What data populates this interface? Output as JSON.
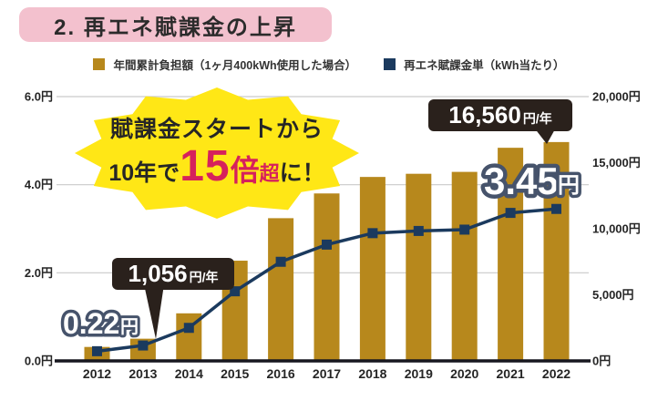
{
  "title": "2. 再エネ賦課金の上昇",
  "legend": [
    {
      "label": "年間累計負担額（1ヶ月400kWh使用した場合）",
      "color": "#B7881C"
    },
    {
      "label": "再エネ賦課金単（kWh当たり）",
      "color": "#1B3A5E"
    }
  ],
  "annotations": {
    "burst_line1": "賦課金スタートから",
    "burst_pre": "10年で",
    "burst_big": "15",
    "burst_bai": "倍",
    "burst_cho": "超",
    "burst_post": "に！",
    "callout_2013_value": "1,056",
    "callout_2013_unit": "円/年",
    "callout_2022_value": "16,560",
    "callout_2022_unit": "円/年",
    "label_2012_value": "0.22",
    "label_2012_unit": "円",
    "label_2022_value": "3.45",
    "label_2022_unit": "円"
  },
  "chart_data": {
    "type": "bar",
    "title": "再エネ賦課金の上昇",
    "categories": [
      2012,
      2013,
      2014,
      2015,
      2016,
      2017,
      2018,
      2019,
      2020,
      2021,
      2022
    ],
    "series": [
      {
        "name": "年間累計負担額（1ヶ月400kWh使用した場合）",
        "type": "bar",
        "axis": "right",
        "unit": "円/年",
        "values": [
          1056,
          1680,
          3600,
          7584,
          10800,
          12672,
          13920,
          14160,
          14304,
          16128,
          16560
        ]
      },
      {
        "name": "再エネ賦課金単（kWh当たり）",
        "type": "line",
        "axis": "left",
        "unit": "円/kWh",
        "values": [
          0.22,
          0.35,
          0.75,
          1.58,
          2.25,
          2.64,
          2.9,
          2.95,
          2.98,
          3.36,
          3.45
        ]
      }
    ],
    "left_axis": {
      "range": [
        0,
        6
      ],
      "tick_values": [
        0,
        2,
        4,
        6
      ],
      "tick_labels": [
        "0.0円",
        "2.0円",
        "4.0円",
        "6.0円"
      ]
    },
    "right_axis": {
      "range": [
        0,
        20000
      ],
      "tick_values": [
        0,
        5000,
        10000,
        15000,
        20000
      ],
      "tick_labels": [
        "0円",
        "5,000円",
        "10,000円",
        "15,000円",
        "20,000円"
      ]
    },
    "grid": true,
    "legend_position": "top",
    "colors": {
      "bar": "#B7881C",
      "line": "#1B3A5E",
      "grid": "#C9C9C9",
      "axis": "#17171F",
      "burst_bg": "#FFE716",
      "burst_accent": "#D6215C",
      "callout_bg": "#2A211C",
      "title_bg": "#F3C1CE"
    }
  }
}
